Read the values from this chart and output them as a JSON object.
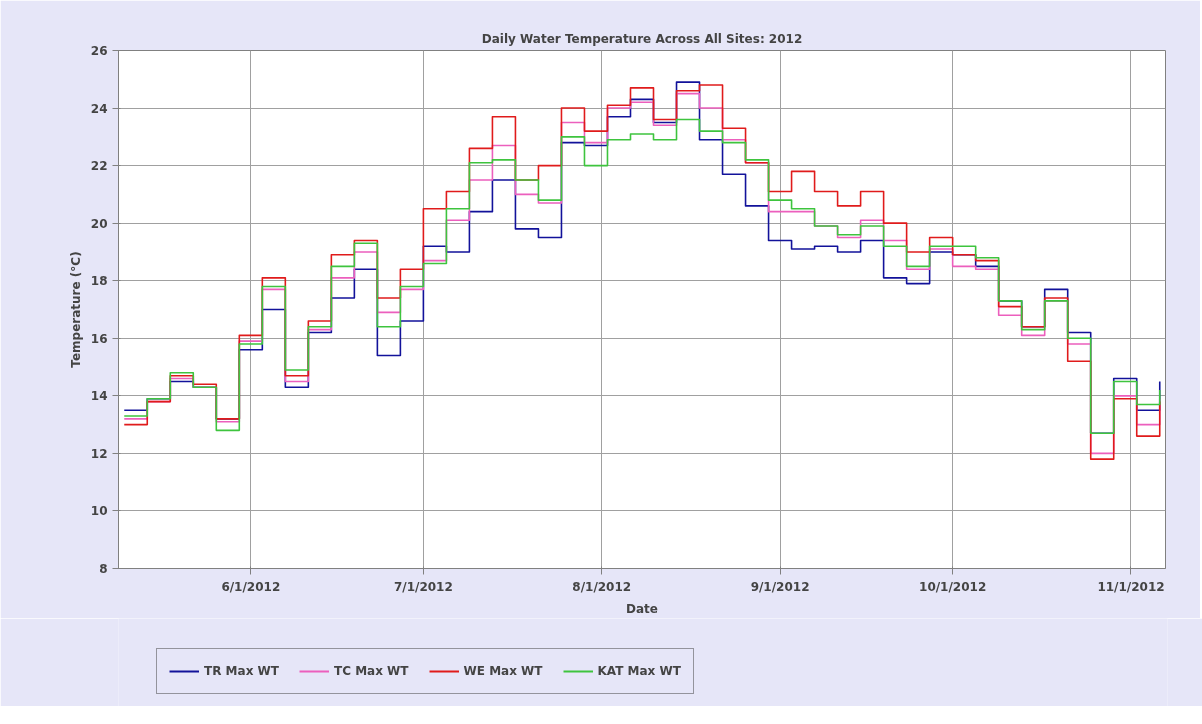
{
  "chart_data": {
    "type": "step",
    "title": "Daily Water Temperature Across All Sites: 2012",
    "xlabel": "Date",
    "ylabel": "Temperature (°C)",
    "x": [
      "2012-05-10",
      "2012-05-14",
      "2012-05-18",
      "2012-05-22",
      "2012-05-26",
      "2012-05-30",
      "2012-06-03",
      "2012-06-07",
      "2012-06-11",
      "2012-06-15",
      "2012-06-19",
      "2012-06-23",
      "2012-06-27",
      "2012-07-01",
      "2012-07-05",
      "2012-07-09",
      "2012-07-13",
      "2012-07-17",
      "2012-07-21",
      "2012-07-25",
      "2012-07-29",
      "2012-08-02",
      "2012-08-06",
      "2012-08-10",
      "2012-08-14",
      "2012-08-18",
      "2012-08-22",
      "2012-08-26",
      "2012-08-30",
      "2012-09-03",
      "2012-09-07",
      "2012-09-11",
      "2012-09-15",
      "2012-09-19",
      "2012-09-23",
      "2012-09-27",
      "2012-10-01",
      "2012-10-05",
      "2012-10-09",
      "2012-10-13",
      "2012-10-17",
      "2012-10-21",
      "2012-10-25",
      "2012-10-29",
      "2012-11-02",
      "2012-11-06"
    ],
    "series": [
      {
        "name": "TR Max WT",
        "color": "#12129a",
        "values": [
          13.5,
          13.9,
          14.5,
          14.3,
          13.2,
          15.6,
          17.0,
          14.3,
          16.2,
          17.4,
          18.4,
          15.4,
          16.6,
          19.2,
          19.0,
          20.4,
          21.5,
          19.8,
          19.5,
          22.8,
          22.7,
          23.7,
          24.3,
          23.5,
          24.9,
          22.9,
          21.7,
          20.6,
          19.4,
          19.1,
          19.2,
          19.0,
          19.4,
          18.1,
          17.9,
          19.0,
          18.9,
          18.5,
          17.3,
          16.4,
          17.7,
          16.2,
          12.7,
          14.6,
          13.5,
          14.5
        ]
      },
      {
        "name": "TC Max WT",
        "color": "#ec5fbd",
        "values": [
          13.2,
          13.8,
          14.6,
          14.3,
          13.1,
          15.9,
          17.7,
          14.5,
          16.3,
          18.1,
          19.0,
          16.9,
          17.7,
          18.7,
          20.1,
          21.5,
          22.7,
          21.0,
          20.7,
          23.5,
          22.8,
          24.0,
          24.2,
          23.4,
          24.5,
          24.0,
          22.9,
          22.1,
          20.4,
          20.4,
          19.9,
          19.5,
          20.1,
          19.4,
          18.4,
          19.1,
          18.5,
          18.4,
          16.8,
          16.1,
          17.3,
          15.8,
          12.0,
          14.0,
          13.0,
          13.9
        ]
      },
      {
        "name": "WE Max WT",
        "color": "#e01b1b",
        "values": [
          13.0,
          13.8,
          14.7,
          14.4,
          13.2,
          16.1,
          18.1,
          14.7,
          16.6,
          18.9,
          19.4,
          17.4,
          18.4,
          20.5,
          21.1,
          22.6,
          23.7,
          21.5,
          22.0,
          24.0,
          23.2,
          24.1,
          24.7,
          23.6,
          24.6,
          24.8,
          23.3,
          22.1,
          21.1,
          21.8,
          21.1,
          20.6,
          21.1,
          20.0,
          19.0,
          19.5,
          18.9,
          18.7,
          17.1,
          16.4,
          17.4,
          15.2,
          11.8,
          13.9,
          12.6,
          13.8
        ]
      },
      {
        "name": "KAT Max WT",
        "color": "#3ec43e",
        "values": [
          13.3,
          13.9,
          14.8,
          14.3,
          12.8,
          15.8,
          17.8,
          14.9,
          16.4,
          18.5,
          19.3,
          16.4,
          17.8,
          18.6,
          20.5,
          22.1,
          22.2,
          21.5,
          20.8,
          23.0,
          22.0,
          22.9,
          23.1,
          22.9,
          23.6,
          23.2,
          22.8,
          22.2,
          20.8,
          20.5,
          19.9,
          19.6,
          19.9,
          19.2,
          18.5,
          19.2,
          19.2,
          18.8,
          17.3,
          16.3,
          17.3,
          16.0,
          12.7,
          14.5,
          13.7,
          14.2
        ]
      }
    ],
    "xlim": [
      "2012-05-09",
      "2012-11-07"
    ],
    "xticks": [
      {
        "value": "2012-06-01",
        "label": "6/1/2012"
      },
      {
        "value": "2012-07-01",
        "label": "7/1/2012"
      },
      {
        "value": "2012-08-01",
        "label": "8/1/2012"
      },
      {
        "value": "2012-09-01",
        "label": "9/1/2012"
      },
      {
        "value": "2012-10-01",
        "label": "10/1/2012"
      },
      {
        "value": "2012-11-01",
        "label": "11/1/2012"
      }
    ],
    "ylim": [
      8,
      26
    ],
    "yticks": [
      8,
      10,
      12,
      14,
      16,
      18,
      20,
      22,
      24,
      26
    ],
    "grid": true,
    "legend": "bottom"
  }
}
